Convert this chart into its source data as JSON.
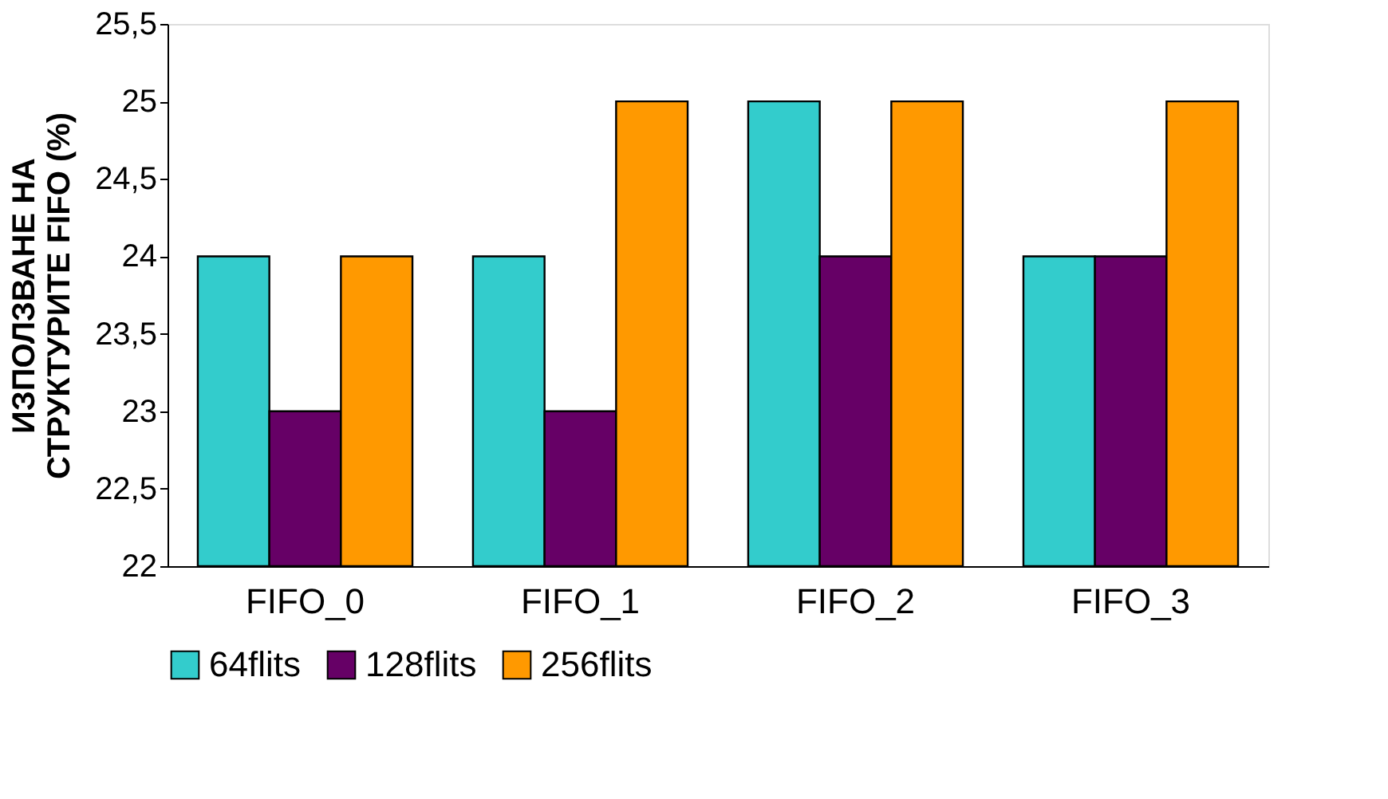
{
  "chart_data": {
    "type": "bar",
    "ylabel": "ИЗПОЛЗВАНЕ НА\nСТРУКТУРИТЕ FIFO (%)",
    "categories": [
      "FIFO_0",
      "FIFO_1",
      "FIFO_2",
      "FIFO_3"
    ],
    "series": [
      {
        "name": "64flits",
        "color": "#33cccc",
        "values": [
          24,
          24,
          25,
          24
        ]
      },
      {
        "name": "128flits",
        "color": "#660066",
        "values": [
          23,
          23,
          24,
          24
        ]
      },
      {
        "name": "256flits",
        "color": "#ff9900",
        "values": [
          24,
          25,
          25,
          25
        ]
      }
    ],
    "ylim": [
      22,
      25.5
    ],
    "yticks": [
      22,
      {
        "value": 22.5,
        "label": "22,5"
      },
      23,
      {
        "value": 23.5,
        "label": "23,5"
      },
      24,
      {
        "value": 24.5,
        "label": "24,5"
      },
      25,
      {
        "value": 25.5,
        "label": "25,5"
      }
    ],
    "grid": false,
    "legend": "bottom"
  }
}
